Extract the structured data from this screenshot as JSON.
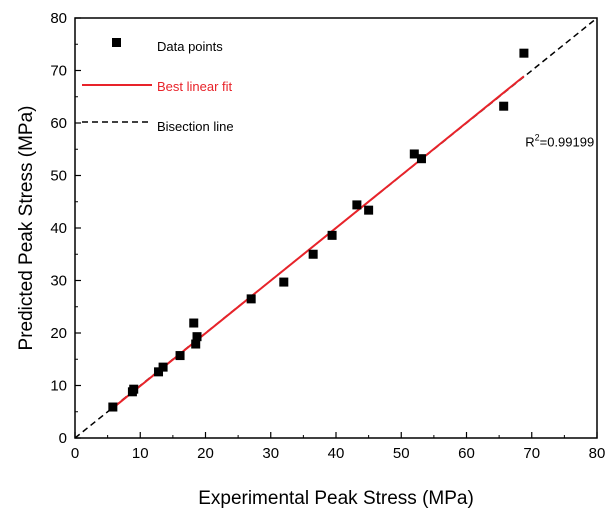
{
  "chart_data": {
    "type": "scatter",
    "title": "",
    "xlabel": "Experimental Peak Stress (MPa)",
    "ylabel": "Predicted Peak Stress (MPa)",
    "xlim": [
      0,
      80
    ],
    "ylim": [
      0,
      80
    ],
    "xticks": [
      0,
      10,
      20,
      30,
      40,
      50,
      60,
      70,
      80
    ],
    "yticks": [
      0,
      10,
      20,
      30,
      40,
      50,
      60,
      70,
      80
    ],
    "grid": false,
    "legend_position": "top-left",
    "legend": [
      {
        "label": "Data points",
        "kind": "marker",
        "color": "#000000"
      },
      {
        "label": "Best linear fit",
        "kind": "line",
        "color": "#e8232a"
      },
      {
        "label": "Bisection line",
        "kind": "dashed-line",
        "color": "#000000"
      }
    ],
    "points": [
      {
        "x": 5.8,
        "y": 5.9
      },
      {
        "x": 8.8,
        "y": 8.8
      },
      {
        "x": 9.0,
        "y": 9.3
      },
      {
        "x": 12.8,
        "y": 12.6
      },
      {
        "x": 13.5,
        "y": 13.5
      },
      {
        "x": 16.1,
        "y": 15.7
      },
      {
        "x": 18.2,
        "y": 21.9
      },
      {
        "x": 18.5,
        "y": 17.9
      },
      {
        "x": 18.7,
        "y": 19.3
      },
      {
        "x": 27.0,
        "y": 26.5
      },
      {
        "x": 32.0,
        "y": 29.7
      },
      {
        "x": 36.5,
        "y": 35.0
      },
      {
        "x": 39.4,
        "y": 38.6
      },
      {
        "x": 43.2,
        "y": 44.4
      },
      {
        "x": 45.0,
        "y": 43.4
      },
      {
        "x": 52.0,
        "y": 54.1
      },
      {
        "x": 53.1,
        "y": 53.2
      },
      {
        "x": 65.7,
        "y": 63.2
      },
      {
        "x": 68.8,
        "y": 73.3
      }
    ],
    "fit_line": {
      "x": [
        5.8,
        68.8
      ],
      "y": [
        5.7,
        68.9
      ],
      "color": "#e8232a"
    },
    "bisection_line": {
      "x": [
        0,
        80
      ],
      "y": [
        0,
        80
      ],
      "color": "#000000"
    },
    "annotation": {
      "text_base": "R",
      "superscript": "2",
      "text_rest": "=0.99199",
      "x": 69,
      "y": 55.5
    }
  }
}
